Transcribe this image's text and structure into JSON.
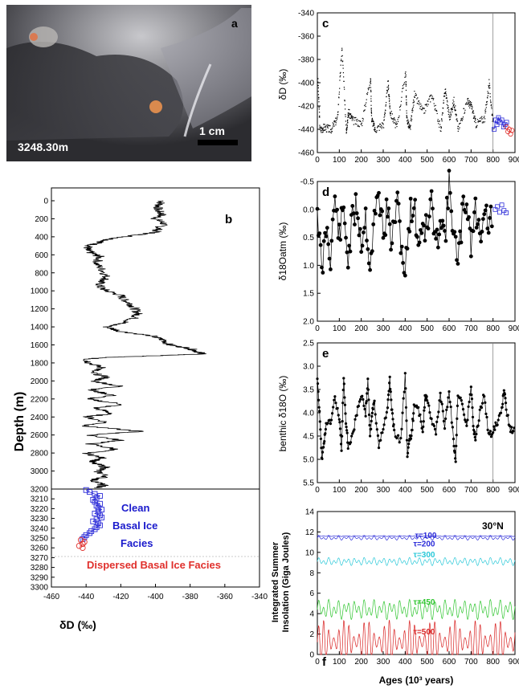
{
  "panel_a": {
    "letter": "a",
    "depth_label": "3248.30m",
    "scale_label": "1 cm"
  },
  "chart_data": [
    {
      "panel": "b",
      "type": "line",
      "xlabel": "δD (‰)",
      "ylabel": "Depth (m)",
      "xlim": [
        -460,
        -340
      ],
      "ylim": [
        3300,
        0
      ],
      "xticks": [
        "-460",
        "-440",
        "-420",
        "-400",
        "-380",
        "-360",
        "-340"
      ],
      "yticks_upper": [
        "0",
        "200",
        "400",
        "600",
        "800",
        "1000",
        "1200",
        "1400",
        "1600",
        "1800",
        "2000",
        "2200",
        "2400",
        "2600",
        "2800",
        "3000",
        "3200"
      ],
      "yticks_lower": [
        "3210",
        "3220",
        "3230",
        "3240",
        "3250",
        "3260",
        "3270",
        "3280",
        "3290",
        "3300"
      ],
      "profile": {
        "depth": [
          0,
          50,
          100,
          150,
          200,
          250,
          300,
          350,
          380,
          420,
          460,
          500,
          540,
          580,
          620,
          700,
          780,
          860,
          900,
          960,
          1000,
          1050,
          1100,
          1150,
          1200,
          1250,
          1300,
          1350,
          1400,
          1450,
          1500,
          1550,
          1600,
          1640,
          1680,
          1700,
          1720,
          1740,
          1760,
          1800,
          1860,
          1900,
          1960,
          2000,
          2060,
          2100,
          2160,
          2200,
          2260,
          2300,
          2360,
          2400,
          2460,
          2500,
          2560,
          2600,
          2660,
          2700,
          2760,
          2800,
          2860,
          2900,
          2960,
          3000,
          3060,
          3100,
          3160,
          3190
        ],
        "dD": [
          -396,
          -398,
          -399,
          -396,
          -400,
          -395,
          -398,
          -400,
          -410,
          -425,
          -432,
          -438,
          -440,
          -437,
          -432,
          -434,
          -430,
          -428,
          -432,
          -432,
          -428,
          -420,
          -418,
          -414,
          -412,
          -410,
          -412,
          -418,
          -428,
          -420,
          -402,
          -395,
          -392,
          -380,
          -375,
          -372,
          -400,
          -430,
          -440,
          -438,
          -430,
          -438,
          -428,
          -436,
          -420,
          -438,
          -424,
          -440,
          -418,
          -435,
          -425,
          -440,
          -428,
          -442,
          -408,
          -438,
          -420,
          -438,
          -422,
          -440,
          -430,
          -438,
          -428,
          -434,
          -428,
          -436,
          -430,
          -434
        ]
      },
      "basal_clean": {
        "depth": [
          3201,
          3203,
          3205,
          3207,
          3209,
          3211,
          3213,
          3215,
          3217,
          3219,
          3221,
          3223,
          3225,
          3227,
          3229,
          3231,
          3233,
          3235,
          3237,
          3239,
          3241,
          3243,
          3245,
          3247,
          3249,
          3251
        ],
        "dD": [
          -440,
          -438,
          -435,
          -432,
          -434,
          -436,
          -435,
          -432,
          -434,
          -433,
          -431,
          -433,
          -435,
          -432,
          -431,
          -434,
          -436,
          -433,
          -432,
          -434,
          -435,
          -437,
          -438,
          -440,
          -441,
          -442
        ]
      },
      "basal_dispersed": {
        "depth": [
          3252,
          3254,
          3256,
          3258,
          3260
        ],
        "dD": [
          -443,
          -441,
          -442,
          -444,
          -442
        ]
      },
      "annotations": [
        "Clean",
        "Basal Ice",
        "Facies",
        "Dispersed Basal Ice Facies"
      ],
      "colors": {
        "clean": "#2b2bd8",
        "dispersed": "#e0302c"
      }
    },
    {
      "panel": "c",
      "type": "scatter",
      "ylabel": "δD (‰)",
      "xlim": [
        0,
        900
      ],
      "ylim": [
        -460,
        -340
      ],
      "xticks": [
        "0",
        "100",
        "200",
        "300",
        "400",
        "500",
        "600",
        "700",
        "800",
        "900"
      ],
      "yticks": [
        "-340",
        "-360",
        "-380",
        "-400",
        "-420",
        "-440",
        "-460"
      ],
      "series": [
        {
          "x": [
            0,
            10,
            30,
            60,
            90,
            110,
            130,
            140,
            160,
            200,
            240,
            245,
            260,
            300,
            320,
            330,
            360,
            400,
            405,
            420,
            440,
            480,
            520,
            560,
            580,
            600,
            620,
            640,
            680,
            700,
            720,
            760,
            780,
            800
          ],
          "y": [
            -395,
            -440,
            -438,
            -440,
            -430,
            -370,
            -440,
            -425,
            -432,
            -435,
            -395,
            -430,
            -440,
            -435,
            -400,
            -425,
            -438,
            -390,
            -430,
            -440,
            -410,
            -425,
            -410,
            -440,
            -405,
            -430,
            -415,
            -440,
            -415,
            -420,
            -435,
            -430,
            -400,
            -438
          ]
        },
        {
          "x": [
            805,
            812,
            818,
            825,
            832,
            840,
            848,
            855,
            862
          ],
          "y": [
            -440,
            -432,
            -436,
            -430,
            -434,
            -432,
            -438,
            -436,
            -434
          ]
        },
        {
          "x": [
            862,
            868,
            874,
            880,
            886
          ],
          "y": [
            -438,
            -442,
            -440,
            -444,
            -441
          ]
        }
      ],
      "vline_x": 800
    },
    {
      "panel": "d",
      "type": "line",
      "ylabel": "δ18Oatm (‰)",
      "xlim": [
        0,
        900
      ],
      "ylim": [
        2.0,
        -0.5
      ],
      "xticks": [
        "0",
        "100",
        "200",
        "300",
        "400",
        "500",
        "600",
        "700",
        "800",
        "900"
      ],
      "yticks": [
        "-0.5",
        "0.0",
        "0.5",
        "1.0",
        "1.5",
        "2.0"
      ],
      "series": [
        {
          "x": [
            0,
            20,
            40,
            60,
            80,
            100,
            120,
            140,
            160,
            180,
            200,
            220,
            240,
            260,
            280,
            300,
            320,
            340,
            360,
            380,
            400,
            420,
            440,
            460,
            480,
            500,
            520,
            540,
            560,
            580,
            600,
            620,
            640,
            660,
            680,
            700,
            720,
            740,
            760,
            780,
            800
          ],
          "y": [
            -0.1,
            1.2,
            0.3,
            0.8,
            -0.2,
            0.5,
            0.0,
            0.9,
            0.2,
            -0.1,
            0.6,
            0.1,
            1.0,
            0.2,
            -0.3,
            0.4,
            0.0,
            0.7,
            -0.2,
            0.5,
            1.2,
            0.1,
            -0.1,
            0.6,
            0.2,
            0.4,
            -0.2,
            0.8,
            0.0,
            0.5,
            -0.4,
            0.3,
            1.1,
            0.1,
            -0.2,
            0.6,
            0.0,
            0.5,
            -0.1,
            0.3,
            0.1
          ]
        },
        {
          "x": [
            810,
            820,
            830,
            840,
            850,
            860
          ],
          "y": [
            0.0,
            -0.05,
            0.05,
            -0.08,
            0.02,
            0.06
          ]
        }
      ]
    },
    {
      "panel": "e",
      "type": "line",
      "ylabel": "benthic δ18O (‰)",
      "xlim": [
        0,
        900
      ],
      "ylim": [
        5.5,
        2.5
      ],
      "xticks": [
        "0",
        "100",
        "200",
        "300",
        "400",
        "500",
        "600",
        "700",
        "800",
        "900"
      ],
      "yticks": [
        "2.5",
        "3.0",
        "3.5",
        "4.0",
        "4.5",
        "5.0",
        "5.5"
      ],
      "series": [
        {
          "x": [
            0,
            10,
            20,
            30,
            40,
            60,
            80,
            100,
            110,
            120,
            130,
            140,
            160,
            180,
            200,
            220,
            230,
            240,
            250,
            260,
            280,
            300,
            320,
            330,
            340,
            350,
            380,
            400,
            410,
            420,
            430,
            440,
            460,
            480,
            490,
            500,
            520,
            540,
            560,
            580,
            600,
            620,
            630,
            640,
            660,
            680,
            700,
            710,
            720,
            740,
            760,
            780,
            800,
            820,
            840,
            850,
            860,
            880,
            900
          ],
          "y": [
            3.2,
            4.0,
            5.0,
            4.6,
            4.3,
            4.2,
            3.7,
            4.1,
            4.8,
            3.2,
            4.2,
            4.7,
            4.5,
            4.0,
            3.6,
            4.0,
            3.3,
            4.5,
            4.0,
            3.8,
            4.7,
            4.3,
            3.9,
            3.3,
            4.0,
            4.4,
            4.6,
            3.2,
            4.9,
            4.6,
            4.4,
            3.9,
            3.9,
            4.4,
            3.7,
            3.7,
            4.2,
            4.4,
            3.6,
            4.3,
            3.5,
            4.6,
            5.0,
            3.6,
            3.8,
            4.3,
            3.4,
            4.3,
            4.6,
            4.0,
            3.6,
            4.5,
            4.4,
            4.2,
            3.9,
            3.5,
            3.9,
            4.4,
            4.3
          ]
        }
      ],
      "vline_x": 800
    },
    {
      "panel": "f",
      "type": "line",
      "xlabel": "Ages (10³ years)",
      "ylabel": "Integrated Summer Insolation (Giga Joules)",
      "xlim": [
        0,
        900
      ],
      "ylim": [
        0,
        14
      ],
      "xticks": [
        "0",
        "100",
        "200",
        "300",
        "400",
        "500",
        "600",
        "700",
        "800",
        "900"
      ],
      "yticks": [
        "0",
        "2",
        "4",
        "6",
        "8",
        "10",
        "12",
        "14"
      ],
      "latitude": "30°N",
      "series": [
        {
          "name": "τ=100",
          "level": 11.6,
          "amplitude": 0.05,
          "color": "#2b2bd8"
        },
        {
          "name": "τ=200",
          "level": 11.4,
          "amplitude": 0.2,
          "color": "#2b2bd8"
        },
        {
          "name": "τ=300",
          "level": 9.1,
          "amplitude": 0.4,
          "color": "#28c8d8"
        },
        {
          "name": "τ=450",
          "level": 4.4,
          "amplitude": 1.0,
          "color": "#2ec52e"
        },
        {
          "name": "τ=500",
          "level": 1.2,
          "amplitude": 2.2,
          "color": "#d82020"
        }
      ]
    }
  ]
}
